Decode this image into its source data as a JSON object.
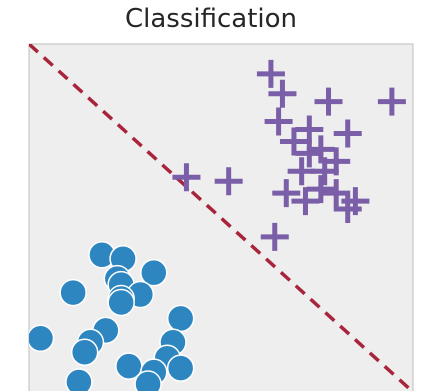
{
  "chart_data": {
    "type": "scatter",
    "title": "Classification",
    "xlabel": "",
    "ylabel": "",
    "xlim": [
      0,
      10
    ],
    "ylim": [
      0,
      8.75
    ],
    "grid": false,
    "background": "#eeeeee",
    "series": [
      {
        "marker": "plus",
        "color": "#7b5ea8",
        "points": [
          [
            6.3,
            8.0
          ],
          [
            6.6,
            7.5
          ],
          [
            7.8,
            7.3
          ],
          [
            9.45,
            7.3
          ],
          [
            6.5,
            6.8
          ],
          [
            7.3,
            6.6
          ],
          [
            8.3,
            6.5
          ],
          [
            6.9,
            6.3
          ],
          [
            7.6,
            6.1
          ],
          [
            7.3,
            6.0
          ],
          [
            8.0,
            5.8
          ],
          [
            7.1,
            5.55
          ],
          [
            7.7,
            5.55
          ],
          [
            4.1,
            5.4
          ],
          [
            5.2,
            5.3
          ],
          [
            7.6,
            5.1
          ],
          [
            6.7,
            5.0
          ],
          [
            8.0,
            5.0
          ],
          [
            7.2,
            4.8
          ],
          [
            8.5,
            4.8
          ],
          [
            8.3,
            4.6
          ],
          [
            6.4,
            3.9
          ]
        ]
      },
      {
        "marker": "circle",
        "color": "#2e86c1",
        "points": [
          [
            1.9,
            3.45
          ],
          [
            2.45,
            3.35
          ],
          [
            3.25,
            3.0
          ],
          [
            2.3,
            2.85
          ],
          [
            2.4,
            2.7
          ],
          [
            1.15,
            2.5
          ],
          [
            2.9,
            2.45
          ],
          [
            2.4,
            2.35
          ],
          [
            2.4,
            2.25
          ],
          [
            3.95,
            1.85
          ],
          [
            2.0,
            1.55
          ],
          [
            0.3,
            1.35
          ],
          [
            1.6,
            1.25
          ],
          [
            3.75,
            1.25
          ],
          [
            1.45,
            1.0
          ],
          [
            3.6,
            0.85
          ],
          [
            2.6,
            0.65
          ],
          [
            3.95,
            0.6
          ],
          [
            3.25,
            0.5
          ],
          [
            1.3,
            0.25
          ],
          [
            3.1,
            0.2
          ]
        ]
      }
    ],
    "decision_boundary": {
      "style": "dashed",
      "color": "#a8243a",
      "points": [
        [
          0,
          8.75
        ],
        [
          10,
          0
        ]
      ]
    }
  }
}
